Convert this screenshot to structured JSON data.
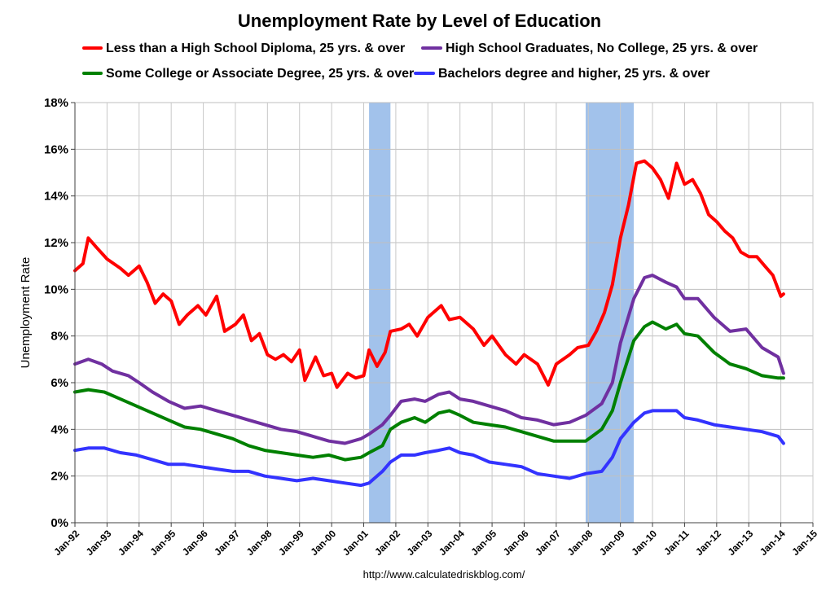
{
  "chart_data": {
    "type": "line",
    "title": "Unemployment Rate by Level of Education",
    "xlabel": "",
    "ylabel": "Unemployment Rate",
    "source": "http://www.calculatedriskblog.com/",
    "x_range": [
      "1992-01",
      "2015-01"
    ],
    "ylim": [
      0,
      18
    ],
    "y_ticks": [
      "0%",
      "2%",
      "4%",
      "6%",
      "8%",
      "10%",
      "12%",
      "14%",
      "16%",
      "18%"
    ],
    "x_ticks": [
      "Jan-92",
      "Jan-93",
      "Jan-94",
      "Jan-95",
      "Jan-96",
      "Jan-97",
      "Jan-98",
      "Jan-99",
      "Jan-00",
      "Jan-01",
      "Jan-02",
      "Jan-03",
      "Jan-04",
      "Jan-05",
      "Jan-06",
      "Jan-07",
      "Jan-08",
      "Jan-09",
      "Jan-10",
      "Jan-11",
      "Jan-12",
      "Jan-13",
      "Jan-14",
      "Jan-15"
    ],
    "grid": "on",
    "legend_position": "top",
    "recessions": [
      {
        "start": "2001-03",
        "end": "2001-11"
      },
      {
        "start": "2007-12",
        "end": "2009-06"
      }
    ],
    "series": [
      {
        "name": "Less than a High School Diploma, 25 yrs. & over",
        "color": "#ff0000",
        "points": [
          [
            "1992-01",
            10.8
          ],
          [
            "1992-04",
            11.1
          ],
          [
            "1992-06",
            12.2
          ],
          [
            "1992-09",
            11.8
          ],
          [
            "1993-01",
            11.3
          ],
          [
            "1993-06",
            10.9
          ],
          [
            "1993-09",
            10.6
          ],
          [
            "1994-01",
            11.0
          ],
          [
            "1994-04",
            10.3
          ],
          [
            "1994-07",
            9.4
          ],
          [
            "1994-10",
            9.8
          ],
          [
            "1995-01",
            9.5
          ],
          [
            "1995-04",
            8.5
          ],
          [
            "1995-07",
            8.9
          ],
          [
            "1995-11",
            9.3
          ],
          [
            "1996-02",
            8.9
          ],
          [
            "1996-06",
            9.7
          ],
          [
            "1996-09",
            8.2
          ],
          [
            "1997-01",
            8.5
          ],
          [
            "1997-04",
            8.9
          ],
          [
            "1997-07",
            7.8
          ],
          [
            "1997-10",
            8.1
          ],
          [
            "1998-01",
            7.2
          ],
          [
            "1998-04",
            7.0
          ],
          [
            "1998-07",
            7.2
          ],
          [
            "1998-10",
            6.9
          ],
          [
            "1999-01",
            7.4
          ],
          [
            "1999-03",
            6.1
          ],
          [
            "1999-07",
            7.1
          ],
          [
            "1999-10",
            6.3
          ],
          [
            "2000-01",
            6.4
          ],
          [
            "2000-03",
            5.8
          ],
          [
            "2000-07",
            6.4
          ],
          [
            "2000-10",
            6.2
          ],
          [
            "2001-01",
            6.3
          ],
          [
            "2001-03",
            7.4
          ],
          [
            "2001-06",
            6.7
          ],
          [
            "2001-09",
            7.3
          ],
          [
            "2001-11",
            8.2
          ],
          [
            "2002-03",
            8.3
          ],
          [
            "2002-06",
            8.5
          ],
          [
            "2002-09",
            8.0
          ],
          [
            "2003-01",
            8.8
          ],
          [
            "2003-06",
            9.3
          ],
          [
            "2003-09",
            8.7
          ],
          [
            "2004-01",
            8.8
          ],
          [
            "2004-06",
            8.3
          ],
          [
            "2004-10",
            7.6
          ],
          [
            "2005-01",
            8.0
          ],
          [
            "2005-06",
            7.2
          ],
          [
            "2005-10",
            6.8
          ],
          [
            "2006-01",
            7.2
          ],
          [
            "2006-06",
            6.8
          ],
          [
            "2006-10",
            5.9
          ],
          [
            "2007-01",
            6.8
          ],
          [
            "2007-06",
            7.2
          ],
          [
            "2007-09",
            7.5
          ],
          [
            "2008-01",
            7.6
          ],
          [
            "2008-04",
            8.2
          ],
          [
            "2008-07",
            9.0
          ],
          [
            "2008-10",
            10.2
          ],
          [
            "2009-01",
            12.2
          ],
          [
            "2009-04",
            13.6
          ],
          [
            "2009-07",
            15.4
          ],
          [
            "2009-10",
            15.5
          ],
          [
            "2010-01",
            15.2
          ],
          [
            "2010-04",
            14.7
          ],
          [
            "2010-07",
            13.9
          ],
          [
            "2010-10",
            15.4
          ],
          [
            "2011-01",
            14.5
          ],
          [
            "2011-04",
            14.7
          ],
          [
            "2011-07",
            14.1
          ],
          [
            "2011-10",
            13.2
          ],
          [
            "2012-01",
            12.9
          ],
          [
            "2012-04",
            12.5
          ],
          [
            "2012-07",
            12.2
          ],
          [
            "2012-10",
            11.6
          ],
          [
            "2013-01",
            11.4
          ],
          [
            "2013-04",
            11.4
          ],
          [
            "2013-07",
            11.0
          ],
          [
            "2013-10",
            10.6
          ],
          [
            "2014-01",
            9.7
          ],
          [
            "2014-02",
            9.8
          ]
        ]
      },
      {
        "name": "High School Graduates, No College, 25 yrs. & over",
        "color": "#7030a0",
        "points": [
          [
            "1992-01",
            6.8
          ],
          [
            "1992-06",
            7.0
          ],
          [
            "1992-11",
            6.8
          ],
          [
            "1993-03",
            6.5
          ],
          [
            "1993-09",
            6.3
          ],
          [
            "1994-01",
            6.0
          ],
          [
            "1994-06",
            5.6
          ],
          [
            "1994-12",
            5.2
          ],
          [
            "1995-06",
            4.9
          ],
          [
            "1995-12",
            5.0
          ],
          [
            "1996-06",
            4.8
          ],
          [
            "1996-12",
            4.6
          ],
          [
            "1997-06",
            4.4
          ],
          [
            "1997-12",
            4.2
          ],
          [
            "1998-06",
            4.0
          ],
          [
            "1998-12",
            3.9
          ],
          [
            "1999-06",
            3.7
          ],
          [
            "1999-12",
            3.5
          ],
          [
            "2000-06",
            3.4
          ],
          [
            "2000-12",
            3.6
          ],
          [
            "2001-03",
            3.8
          ],
          [
            "2001-08",
            4.2
          ],
          [
            "2001-11",
            4.6
          ],
          [
            "2002-03",
            5.2
          ],
          [
            "2002-08",
            5.3
          ],
          [
            "2002-12",
            5.2
          ],
          [
            "2003-05",
            5.5
          ],
          [
            "2003-09",
            5.6
          ],
          [
            "2004-01",
            5.3
          ],
          [
            "2004-06",
            5.2
          ],
          [
            "2004-12",
            5.0
          ],
          [
            "2005-06",
            4.8
          ],
          [
            "2005-12",
            4.5
          ],
          [
            "2006-06",
            4.4
          ],
          [
            "2006-12",
            4.2
          ],
          [
            "2007-06",
            4.3
          ],
          [
            "2007-12",
            4.6
          ],
          [
            "2008-06",
            5.1
          ],
          [
            "2008-10",
            6.0
          ],
          [
            "2009-01",
            7.7
          ],
          [
            "2009-06",
            9.6
          ],
          [
            "2009-10",
            10.5
          ],
          [
            "2010-01",
            10.6
          ],
          [
            "2010-06",
            10.3
          ],
          [
            "2010-10",
            10.1
          ],
          [
            "2011-01",
            9.6
          ],
          [
            "2011-06",
            9.6
          ],
          [
            "2011-12",
            8.8
          ],
          [
            "2012-06",
            8.2
          ],
          [
            "2012-12",
            8.3
          ],
          [
            "2013-06",
            7.5
          ],
          [
            "2013-12",
            7.1
          ],
          [
            "2014-02",
            6.4
          ]
        ]
      },
      {
        "name": "Some College or Associate Degree, 25 yrs. & over",
        "color": "#008000",
        "points": [
          [
            "1992-01",
            5.6
          ],
          [
            "1992-06",
            5.7
          ],
          [
            "1992-12",
            5.6
          ],
          [
            "1993-06",
            5.3
          ],
          [
            "1993-12",
            5.0
          ],
          [
            "1994-06",
            4.7
          ],
          [
            "1994-12",
            4.4
          ],
          [
            "1995-06",
            4.1
          ],
          [
            "1995-12",
            4.0
          ],
          [
            "1996-06",
            3.8
          ],
          [
            "1996-12",
            3.6
          ],
          [
            "1997-06",
            3.3
          ],
          [
            "1997-12",
            3.1
          ],
          [
            "1998-06",
            3.0
          ],
          [
            "1998-12",
            2.9
          ],
          [
            "1999-06",
            2.8
          ],
          [
            "1999-12",
            2.9
          ],
          [
            "2000-06",
            2.7
          ],
          [
            "2000-12",
            2.8
          ],
          [
            "2001-03",
            3.0
          ],
          [
            "2001-08",
            3.3
          ],
          [
            "2001-11",
            4.0
          ],
          [
            "2002-03",
            4.3
          ],
          [
            "2002-08",
            4.5
          ],
          [
            "2002-12",
            4.3
          ],
          [
            "2003-05",
            4.7
          ],
          [
            "2003-09",
            4.8
          ],
          [
            "2004-01",
            4.6
          ],
          [
            "2004-06",
            4.3
          ],
          [
            "2004-12",
            4.2
          ],
          [
            "2005-06",
            4.1
          ],
          [
            "2005-12",
            3.9
          ],
          [
            "2006-06",
            3.7
          ],
          [
            "2006-12",
            3.5
          ],
          [
            "2007-06",
            3.5
          ],
          [
            "2007-12",
            3.5
          ],
          [
            "2008-06",
            4.0
          ],
          [
            "2008-10",
            4.8
          ],
          [
            "2009-01",
            6.0
          ],
          [
            "2009-06",
            7.8
          ],
          [
            "2009-10",
            8.4
          ],
          [
            "2010-01",
            8.6
          ],
          [
            "2010-06",
            8.3
          ],
          [
            "2010-10",
            8.5
          ],
          [
            "2011-01",
            8.1
          ],
          [
            "2011-06",
            8.0
          ],
          [
            "2011-12",
            7.3
          ],
          [
            "2012-06",
            6.8
          ],
          [
            "2012-12",
            6.6
          ],
          [
            "2013-06",
            6.3
          ],
          [
            "2013-12",
            6.2
          ],
          [
            "2014-02",
            6.2
          ]
        ]
      },
      {
        "name": "Bachelors degree and higher, 25 yrs. & over",
        "color": "#3333ff",
        "points": [
          [
            "1992-01",
            3.1
          ],
          [
            "1992-06",
            3.2
          ],
          [
            "1992-12",
            3.2
          ],
          [
            "1993-06",
            3.0
          ],
          [
            "1993-12",
            2.9
          ],
          [
            "1994-06",
            2.7
          ],
          [
            "1994-12",
            2.5
          ],
          [
            "1995-06",
            2.5
          ],
          [
            "1995-12",
            2.4
          ],
          [
            "1996-06",
            2.3
          ],
          [
            "1996-12",
            2.2
          ],
          [
            "1997-06",
            2.2
          ],
          [
            "1997-12",
            2.0
          ],
          [
            "1998-06",
            1.9
          ],
          [
            "1998-12",
            1.8
          ],
          [
            "1999-06",
            1.9
          ],
          [
            "1999-12",
            1.8
          ],
          [
            "2000-06",
            1.7
          ],
          [
            "2000-12",
            1.6
          ],
          [
            "2001-03",
            1.7
          ],
          [
            "2001-08",
            2.2
          ],
          [
            "2001-11",
            2.6
          ],
          [
            "2002-03",
            2.9
          ],
          [
            "2002-08",
            2.9
          ],
          [
            "2002-12",
            3.0
          ],
          [
            "2003-05",
            3.1
          ],
          [
            "2003-09",
            3.2
          ],
          [
            "2004-01",
            3.0
          ],
          [
            "2004-06",
            2.9
          ],
          [
            "2004-12",
            2.6
          ],
          [
            "2005-06",
            2.5
          ],
          [
            "2005-12",
            2.4
          ],
          [
            "2006-06",
            2.1
          ],
          [
            "2006-12",
            2.0
          ],
          [
            "2007-06",
            1.9
          ],
          [
            "2007-12",
            2.1
          ],
          [
            "2008-06",
            2.2
          ],
          [
            "2008-10",
            2.8
          ],
          [
            "2009-01",
            3.6
          ],
          [
            "2009-06",
            4.3
          ],
          [
            "2009-10",
            4.7
          ],
          [
            "2010-01",
            4.8
          ],
          [
            "2010-06",
            4.8
          ],
          [
            "2010-10",
            4.8
          ],
          [
            "2011-01",
            4.5
          ],
          [
            "2011-06",
            4.4
          ],
          [
            "2011-12",
            4.2
          ],
          [
            "2012-06",
            4.1
          ],
          [
            "2012-12",
            4.0
          ],
          [
            "2013-06",
            3.9
          ],
          [
            "2013-12",
            3.7
          ],
          [
            "2014-02",
            3.4
          ]
        ]
      }
    ]
  }
}
